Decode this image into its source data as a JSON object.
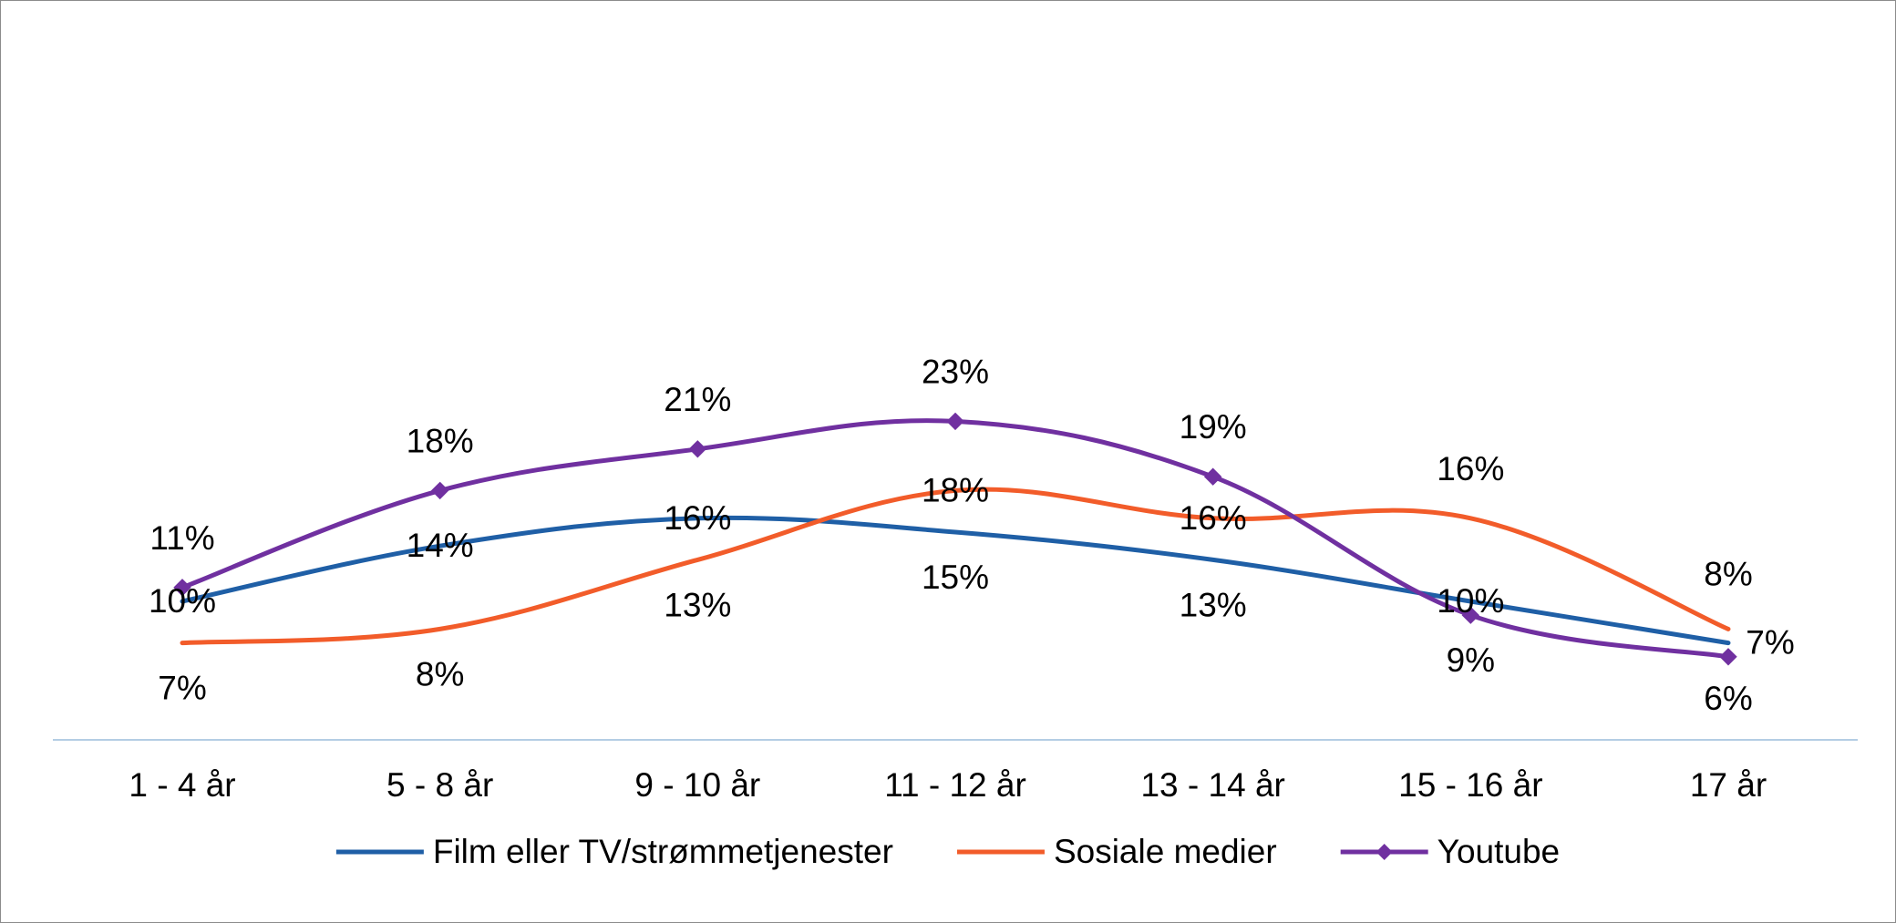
{
  "chart_data": {
    "type": "line",
    "categories": [
      "1 - 4 år",
      "5 - 8 år",
      "9 - 10 år",
      "11 - 12 år",
      "13 - 14 år",
      "15 - 16 år",
      "17 år"
    ],
    "series": [
      {
        "name": "Film eller TV/strømmetjenester",
        "values": [
          10,
          14,
          16,
          15,
          13,
          10,
          7
        ],
        "labels": [
          "10%",
          "14%",
          "16%",
          "15%",
          "13%",
          "10%",
          "7%"
        ],
        "color": "#1f5fa6",
        "marker": "none"
      },
      {
        "name": "Sosiale medier",
        "values": [
          7,
          8,
          13,
          18,
          16,
          16,
          8
        ],
        "labels": [
          "7%",
          "8%",
          "13%",
          "18%",
          "16%",
          "16%",
          "8%"
        ],
        "color": "#f25c2a",
        "marker": "none"
      },
      {
        "name": "Youtube",
        "values": [
          11,
          18,
          21,
          23,
          19,
          9,
          6
        ],
        "labels": [
          "11%",
          "18%",
          "21%",
          "23%",
          "19%",
          "9%",
          "6%"
        ],
        "color": "#7030a0",
        "marker": "diamond"
      }
    ],
    "axis_color": "#b4cde4",
    "legend_position": "bottom",
    "grid": false
  }
}
